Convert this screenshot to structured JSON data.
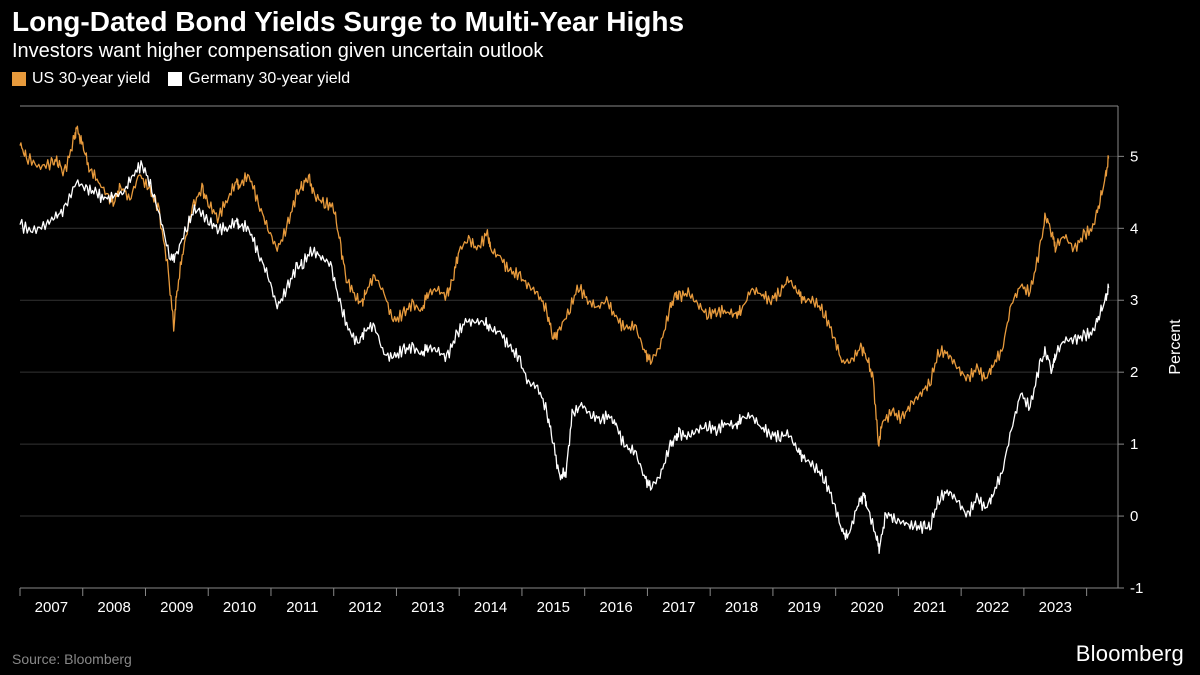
{
  "title": "Long-Dated Bond Yields Surge to Multi-Year Highs",
  "subtitle": "Investors want higher compensation given uncertain outlook",
  "source": "Source: Bloomberg",
  "brand": "Bloomberg",
  "chart": {
    "type": "line",
    "background_color": "#000000",
    "grid_color": "#333333",
    "axis_color": "#888888",
    "text_color": "#ffffff",
    "title_fontsize": 28,
    "subtitle_fontsize": 20,
    "label_fontsize": 15,
    "line_width": 1.3,
    "y_axis": {
      "title": "Percent",
      "position": "right",
      "lim": [
        -1,
        5.7
      ],
      "ticks": [
        -1,
        0,
        1,
        2,
        3,
        4,
        5
      ]
    },
    "x_axis": {
      "lim": [
        2006.5,
        2024
      ],
      "ticks": [
        2007,
        2008,
        2009,
        2010,
        2011,
        2012,
        2013,
        2014,
        2015,
        2016,
        2017,
        2018,
        2019,
        2020,
        2021,
        2022,
        2023
      ]
    },
    "legend": {
      "position": "top-left",
      "items": [
        {
          "label": "US 30-year yield",
          "color": "#e79a3c"
        },
        {
          "label": "Germany 30-year yield",
          "color": "#ffffff"
        }
      ]
    },
    "series": [
      {
        "name": "US 30-year yield",
        "color": "#e79a3c",
        "data": [
          [
            2006.5,
            5.15
          ],
          [
            2006.6,
            5.0
          ],
          [
            2006.8,
            4.85
          ],
          [
            2007.0,
            4.9
          ],
          [
            2007.1,
            4.95
          ],
          [
            2007.2,
            4.75
          ],
          [
            2007.35,
            5.2
          ],
          [
            2007.4,
            5.4
          ],
          [
            2007.5,
            5.15
          ],
          [
            2007.6,
            4.85
          ],
          [
            2007.75,
            4.65
          ],
          [
            2007.9,
            4.45
          ],
          [
            2008.0,
            4.35
          ],
          [
            2008.1,
            4.6
          ],
          [
            2008.25,
            4.4
          ],
          [
            2008.4,
            4.75
          ],
          [
            2008.55,
            4.55
          ],
          [
            2008.7,
            4.3
          ],
          [
            2008.85,
            3.5
          ],
          [
            2008.95,
            2.65
          ],
          [
            2009.0,
            3.1
          ],
          [
            2009.1,
            3.7
          ],
          [
            2009.25,
            4.3
          ],
          [
            2009.4,
            4.55
          ],
          [
            2009.5,
            4.35
          ],
          [
            2009.65,
            4.15
          ],
          [
            2009.8,
            4.4
          ],
          [
            2009.95,
            4.65
          ],
          [
            2010.0,
            4.6
          ],
          [
            2010.15,
            4.75
          ],
          [
            2010.3,
            4.35
          ],
          [
            2010.45,
            4.0
          ],
          [
            2010.6,
            3.7
          ],
          [
            2010.75,
            4.0
          ],
          [
            2010.9,
            4.45
          ],
          [
            2011.0,
            4.6
          ],
          [
            2011.1,
            4.7
          ],
          [
            2011.2,
            4.45
          ],
          [
            2011.35,
            4.35
          ],
          [
            2011.5,
            4.3
          ],
          [
            2011.6,
            3.8
          ],
          [
            2011.7,
            3.3
          ],
          [
            2011.85,
            3.05
          ],
          [
            2011.95,
            2.95
          ],
          [
            2012.0,
            3.1
          ],
          [
            2012.15,
            3.35
          ],
          [
            2012.3,
            3.1
          ],
          [
            2012.45,
            2.7
          ],
          [
            2012.6,
            2.8
          ],
          [
            2012.75,
            2.95
          ],
          [
            2012.9,
            2.85
          ],
          [
            2013.0,
            3.1
          ],
          [
            2013.15,
            3.15
          ],
          [
            2013.3,
            3.05
          ],
          [
            2013.4,
            3.3
          ],
          [
            2013.5,
            3.7
          ],
          [
            2013.65,
            3.85
          ],
          [
            2013.8,
            3.7
          ],
          [
            2013.95,
            3.95
          ],
          [
            2014.0,
            3.7
          ],
          [
            2014.15,
            3.6
          ],
          [
            2014.3,
            3.4
          ],
          [
            2014.45,
            3.35
          ],
          [
            2014.6,
            3.2
          ],
          [
            2014.75,
            3.1
          ],
          [
            2014.9,
            2.85
          ],
          [
            2015.0,
            2.45
          ],
          [
            2015.1,
            2.6
          ],
          [
            2015.25,
            2.85
          ],
          [
            2015.4,
            3.2
          ],
          [
            2015.55,
            3.0
          ],
          [
            2015.7,
            2.9
          ],
          [
            2015.85,
            3.0
          ],
          [
            2016.0,
            2.75
          ],
          [
            2016.15,
            2.6
          ],
          [
            2016.3,
            2.65
          ],
          [
            2016.45,
            2.3
          ],
          [
            2016.55,
            2.15
          ],
          [
            2016.7,
            2.35
          ],
          [
            2016.85,
            2.85
          ],
          [
            2016.95,
            3.1
          ],
          [
            2017.0,
            3.05
          ],
          [
            2017.15,
            3.1
          ],
          [
            2017.3,
            2.95
          ],
          [
            2017.45,
            2.8
          ],
          [
            2017.6,
            2.85
          ],
          [
            2017.75,
            2.85
          ],
          [
            2017.9,
            2.8
          ],
          [
            2018.0,
            2.85
          ],
          [
            2018.15,
            3.15
          ],
          [
            2018.3,
            3.1
          ],
          [
            2018.45,
            3.0
          ],
          [
            2018.6,
            3.1
          ],
          [
            2018.75,
            3.3
          ],
          [
            2018.9,
            3.1
          ],
          [
            2019.0,
            3.0
          ],
          [
            2019.15,
            3.0
          ],
          [
            2019.3,
            2.85
          ],
          [
            2019.45,
            2.55
          ],
          [
            2019.6,
            2.15
          ],
          [
            2019.75,
            2.15
          ],
          [
            2019.9,
            2.35
          ],
          [
            2020.0,
            2.2
          ],
          [
            2020.1,
            1.9
          ],
          [
            2020.18,
            1.0
          ],
          [
            2020.25,
            1.3
          ],
          [
            2020.4,
            1.45
          ],
          [
            2020.55,
            1.35
          ],
          [
            2020.7,
            1.55
          ],
          [
            2020.85,
            1.7
          ],
          [
            2021.0,
            1.85
          ],
          [
            2021.15,
            2.3
          ],
          [
            2021.3,
            2.25
          ],
          [
            2021.45,
            2.05
          ],
          [
            2021.6,
            1.9
          ],
          [
            2021.75,
            2.05
          ],
          [
            2021.9,
            1.9
          ],
          [
            2022.0,
            2.1
          ],
          [
            2022.15,
            2.3
          ],
          [
            2022.3,
            2.95
          ],
          [
            2022.45,
            3.2
          ],
          [
            2022.6,
            3.1
          ],
          [
            2022.75,
            3.7
          ],
          [
            2022.85,
            4.2
          ],
          [
            2022.95,
            3.9
          ],
          [
            2023.0,
            3.75
          ],
          [
            2023.15,
            3.9
          ],
          [
            2023.3,
            3.7
          ],
          [
            2023.45,
            3.9
          ],
          [
            2023.6,
            4.0
          ],
          [
            2023.7,
            4.35
          ],
          [
            2023.8,
            4.7
          ],
          [
            2023.85,
            5.0
          ]
        ]
      },
      {
        "name": "Germany 30-year yield",
        "color": "#ffffff",
        "data": [
          [
            2006.5,
            4.05
          ],
          [
            2006.7,
            3.95
          ],
          [
            2006.9,
            4.05
          ],
          [
            2007.05,
            4.15
          ],
          [
            2007.2,
            4.25
          ],
          [
            2007.4,
            4.65
          ],
          [
            2007.55,
            4.55
          ],
          [
            2007.7,
            4.5
          ],
          [
            2007.85,
            4.4
          ],
          [
            2008.0,
            4.45
          ],
          [
            2008.15,
            4.5
          ],
          [
            2008.3,
            4.75
          ],
          [
            2008.45,
            4.9
          ],
          [
            2008.6,
            4.55
          ],
          [
            2008.75,
            4.1
          ],
          [
            2008.9,
            3.55
          ],
          [
            2009.0,
            3.65
          ],
          [
            2009.15,
            4.0
          ],
          [
            2009.3,
            4.3
          ],
          [
            2009.5,
            4.1
          ],
          [
            2009.65,
            4.0
          ],
          [
            2009.8,
            4.0
          ],
          [
            2009.95,
            4.1
          ],
          [
            2010.0,
            4.05
          ],
          [
            2010.15,
            4.0
          ],
          [
            2010.3,
            3.65
          ],
          [
            2010.45,
            3.35
          ],
          [
            2010.6,
            2.9
          ],
          [
            2010.75,
            3.15
          ],
          [
            2010.9,
            3.45
          ],
          [
            2011.0,
            3.5
          ],
          [
            2011.15,
            3.7
          ],
          [
            2011.3,
            3.6
          ],
          [
            2011.45,
            3.5
          ],
          [
            2011.6,
            2.95
          ],
          [
            2011.75,
            2.55
          ],
          [
            2011.9,
            2.4
          ],
          [
            2012.0,
            2.6
          ],
          [
            2012.15,
            2.65
          ],
          [
            2012.3,
            2.25
          ],
          [
            2012.45,
            2.2
          ],
          [
            2012.6,
            2.3
          ],
          [
            2012.75,
            2.35
          ],
          [
            2012.9,
            2.25
          ],
          [
            2013.0,
            2.35
          ],
          [
            2013.15,
            2.3
          ],
          [
            2013.3,
            2.2
          ],
          [
            2013.45,
            2.5
          ],
          [
            2013.6,
            2.7
          ],
          [
            2013.75,
            2.7
          ],
          [
            2013.9,
            2.7
          ],
          [
            2014.0,
            2.6
          ],
          [
            2014.15,
            2.55
          ],
          [
            2014.3,
            2.35
          ],
          [
            2014.45,
            2.2
          ],
          [
            2014.6,
            1.85
          ],
          [
            2014.75,
            1.8
          ],
          [
            2014.9,
            1.45
          ],
          [
            2015.0,
            1.0
          ],
          [
            2015.1,
            0.55
          ],
          [
            2015.2,
            0.6
          ],
          [
            2015.3,
            1.4
          ],
          [
            2015.45,
            1.55
          ],
          [
            2015.6,
            1.4
          ],
          [
            2015.75,
            1.35
          ],
          [
            2015.9,
            1.4
          ],
          [
            2016.0,
            1.25
          ],
          [
            2016.15,
            0.95
          ],
          [
            2016.3,
            0.9
          ],
          [
            2016.45,
            0.55
          ],
          [
            2016.55,
            0.4
          ],
          [
            2016.7,
            0.55
          ],
          [
            2016.85,
            0.95
          ],
          [
            2016.95,
            1.1
          ],
          [
            2017.0,
            1.15
          ],
          [
            2017.15,
            1.1
          ],
          [
            2017.3,
            1.2
          ],
          [
            2017.45,
            1.25
          ],
          [
            2017.6,
            1.2
          ],
          [
            2017.75,
            1.3
          ],
          [
            2017.9,
            1.25
          ],
          [
            2018.0,
            1.35
          ],
          [
            2018.15,
            1.4
          ],
          [
            2018.3,
            1.25
          ],
          [
            2018.45,
            1.15
          ],
          [
            2018.6,
            1.1
          ],
          [
            2018.75,
            1.15
          ],
          [
            2018.9,
            0.9
          ],
          [
            2019.0,
            0.8
          ],
          [
            2019.15,
            0.7
          ],
          [
            2019.3,
            0.55
          ],
          [
            2019.45,
            0.25
          ],
          [
            2019.6,
            -0.2
          ],
          [
            2019.7,
            -0.3
          ],
          [
            2019.85,
            0.15
          ],
          [
            2019.95,
            0.3
          ],
          [
            2020.0,
            0.15
          ],
          [
            2020.15,
            -0.3
          ],
          [
            2020.2,
            -0.45
          ],
          [
            2020.3,
            0.05
          ],
          [
            2020.45,
            -0.05
          ],
          [
            2020.6,
            -0.1
          ],
          [
            2020.75,
            -0.15
          ],
          [
            2020.9,
            -0.15
          ],
          [
            2021.0,
            -0.15
          ],
          [
            2021.15,
            0.25
          ],
          [
            2021.3,
            0.35
          ],
          [
            2021.45,
            0.2
          ],
          [
            2021.6,
            0.0
          ],
          [
            2021.75,
            0.25
          ],
          [
            2021.9,
            0.1
          ],
          [
            2022.0,
            0.3
          ],
          [
            2022.15,
            0.6
          ],
          [
            2022.3,
            1.2
          ],
          [
            2022.45,
            1.7
          ],
          [
            2022.6,
            1.5
          ],
          [
            2022.75,
            2.1
          ],
          [
            2022.85,
            2.3
          ],
          [
            2022.95,
            2.0
          ],
          [
            2023.0,
            2.25
          ],
          [
            2023.15,
            2.45
          ],
          [
            2023.3,
            2.45
          ],
          [
            2023.45,
            2.5
          ],
          [
            2023.6,
            2.55
          ],
          [
            2023.7,
            2.8
          ],
          [
            2023.8,
            3.0
          ],
          [
            2023.85,
            3.2
          ]
        ]
      }
    ]
  }
}
